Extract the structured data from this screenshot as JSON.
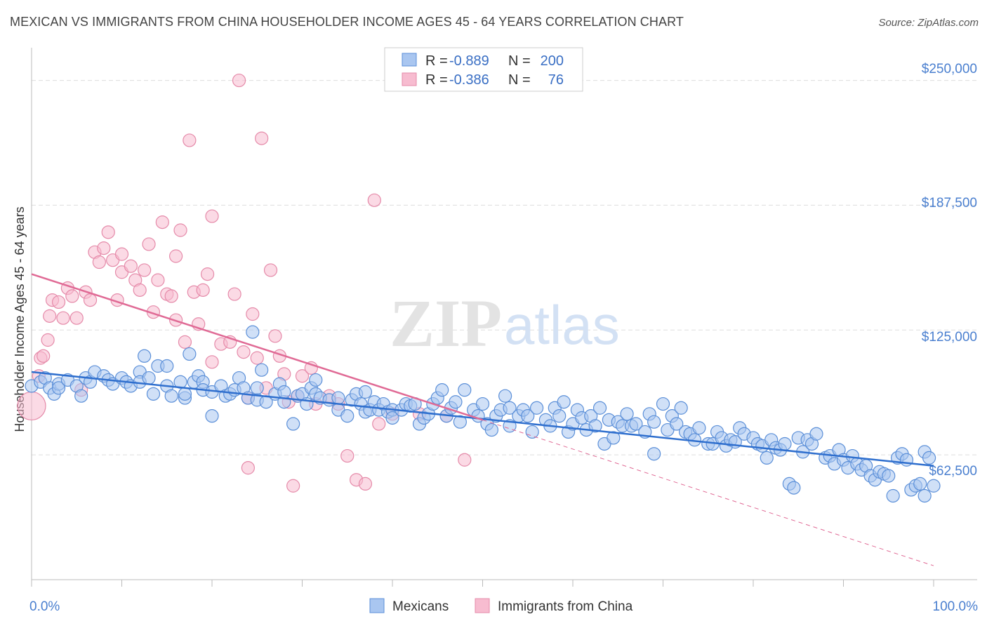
{
  "title": "MEXICAN VS IMMIGRANTS FROM CHINA HOUSEHOLDER INCOME AGES 45 - 64 YEARS CORRELATION CHART",
  "source": "Source: ZipAtlas.com",
  "watermark": {
    "zip": "ZIP",
    "atlas": "atlas"
  },
  "colors": {
    "blue_fill": "#a9c6f0",
    "blue_stroke": "#5b8fd8",
    "blue_line": "#2f6fce",
    "pink_fill": "#f7bcd0",
    "pink_stroke": "#e58aa9",
    "pink_line": "#e06a95",
    "grid": "#dddddd",
    "axis_text": "#4a7fcf"
  },
  "legend": {
    "rows": [
      {
        "r_label": "R =",
        "r_value": "-0.889",
        "n_label": "N =",
        "n_value": "200"
      },
      {
        "r_label": "R =",
        "r_value": "-0.386",
        "n_label": "N =",
        "n_value": "76"
      }
    ]
  },
  "chart_data": {
    "type": "scatter",
    "title": "MEXICAN VS IMMIGRANTS FROM CHINA HOUSEHOLDER INCOME AGES 45 - 64 YEARS CORRELATION CHART",
    "xlabel": "",
    "ylabel": "Householder Income Ages 45 - 64 years",
    "xlim": [
      0,
      100
    ],
    "ylim": [
      0,
      262500
    ],
    "x_tick_labels": [
      "0.0%",
      "100.0%"
    ],
    "y_ticks": [
      62500,
      125000,
      187500,
      250000
    ],
    "y_tick_labels": [
      "$62,500",
      "$125,000",
      "$187,500",
      "$250,000"
    ],
    "grid": true,
    "legend_position": "top-center",
    "series": [
      {
        "name": "Mexicans",
        "r": -0.889,
        "n": 200,
        "trend": {
          "x": [
            0,
            100
          ],
          "y": [
            104000,
            57000
          ]
        },
        "points": [
          [
            0,
            97000
          ],
          [
            1,
            99000
          ],
          [
            1.5,
            101000
          ],
          [
            2,
            96000
          ],
          [
            2.5,
            93000
          ],
          [
            3,
            98000
          ],
          [
            3,
            96000
          ],
          [
            4,
            100000
          ],
          [
            5,
            97000
          ],
          [
            5.5,
            92000
          ],
          [
            6,
            101000
          ],
          [
            6.5,
            99000
          ],
          [
            7,
            104000
          ],
          [
            8,
            102000
          ],
          [
            8.5,
            100000
          ],
          [
            9,
            98000
          ],
          [
            10,
            101000
          ],
          [
            10.5,
            99000
          ],
          [
            11,
            97000
          ],
          [
            12,
            104000
          ],
          [
            12,
            99000
          ],
          [
            12.5,
            112000
          ],
          [
            13,
            101000
          ],
          [
            13.5,
            93000
          ],
          [
            14,
            107000
          ],
          [
            15,
            107000
          ],
          [
            15,
            97000
          ],
          [
            15.5,
            92000
          ],
          [
            16.5,
            99000
          ],
          [
            17,
            91000
          ],
          [
            17,
            93000
          ],
          [
            17.5,
            113000
          ],
          [
            18,
            99000
          ],
          [
            18.5,
            102000
          ],
          [
            19,
            99000
          ],
          [
            19,
            95000
          ],
          [
            20,
            94000
          ],
          [
            20,
            82000
          ],
          [
            21,
            97000
          ],
          [
            21.5,
            92000
          ],
          [
            22,
            93000
          ],
          [
            22.5,
            95000
          ],
          [
            23,
            101000
          ],
          [
            23.5,
            96000
          ],
          [
            24,
            91000
          ],
          [
            24.5,
            124000
          ],
          [
            25,
            90000
          ],
          [
            25,
            96000
          ],
          [
            25.5,
            105000
          ],
          [
            26,
            89000
          ],
          [
            27,
            93000
          ],
          [
            27.5,
            98000
          ],
          [
            28,
            89000
          ],
          [
            28,
            94000
          ],
          [
            29,
            78000
          ],
          [
            29.5,
            92000
          ],
          [
            30,
            93000
          ],
          [
            30.5,
            88000
          ],
          [
            31,
            96000
          ],
          [
            31.5,
            100000
          ],
          [
            31.5,
            93000
          ],
          [
            32,
            91000
          ],
          [
            33,
            90000
          ],
          [
            34,
            85000
          ],
          [
            34,
            91000
          ],
          [
            35,
            82000
          ],
          [
            35.5,
            90000
          ],
          [
            36,
            93000
          ],
          [
            36.5,
            88000
          ],
          [
            37,
            84000
          ],
          [
            37,
            94000
          ],
          [
            37.5,
            85000
          ],
          [
            38,
            89000
          ],
          [
            38.5,
            85000
          ],
          [
            39,
            88000
          ],
          [
            39.5,
            84000
          ],
          [
            40,
            85000
          ],
          [
            40,
            81000
          ],
          [
            41,
            85000
          ],
          [
            41.5,
            88000
          ],
          [
            42,
            87000
          ],
          [
            42.5,
            88000
          ],
          [
            43,
            78000
          ],
          [
            43.5,
            81000
          ],
          [
            44,
            83000
          ],
          [
            44.5,
            88000
          ],
          [
            45,
            91000
          ],
          [
            45.5,
            95000
          ],
          [
            46,
            82000
          ],
          [
            46.5,
            86000
          ],
          [
            47,
            89000
          ],
          [
            47.5,
            79000
          ],
          [
            48,
            95000
          ],
          [
            49,
            85000
          ],
          [
            49.5,
            82000
          ],
          [
            50,
            88000
          ],
          [
            50.5,
            78000
          ],
          [
            51,
            75000
          ],
          [
            51.5,
            82000
          ],
          [
            52,
            85000
          ],
          [
            52.5,
            92000
          ],
          [
            53,
            86000
          ],
          [
            53,
            77000
          ],
          [
            54,
            82000
          ],
          [
            54.5,
            85000
          ],
          [
            55,
            82000
          ],
          [
            55.5,
            74000
          ],
          [
            56,
            86000
          ],
          [
            57,
            80000
          ],
          [
            57.5,
            77000
          ],
          [
            58,
            86000
          ],
          [
            58.5,
            82000
          ],
          [
            59,
            89000
          ],
          [
            59.5,
            74000
          ],
          [
            60,
            78000
          ],
          [
            60.5,
            85000
          ],
          [
            61,
            81000
          ],
          [
            61.5,
            75000
          ],
          [
            62,
            82000
          ],
          [
            62.5,
            77000
          ],
          [
            63,
            86000
          ],
          [
            63.5,
            68000
          ],
          [
            64,
            80000
          ],
          [
            64.5,
            71000
          ],
          [
            65,
            79000
          ],
          [
            65.5,
            77000
          ],
          [
            66,
            83000
          ],
          [
            66.5,
            77000
          ],
          [
            67,
            78000
          ],
          [
            68,
            74000
          ],
          [
            68.5,
            83000
          ],
          [
            69,
            79000
          ],
          [
            69,
            63000
          ],
          [
            70,
            88000
          ],
          [
            70.5,
            75000
          ],
          [
            71,
            82000
          ],
          [
            71.5,
            78000
          ],
          [
            72,
            86000
          ],
          [
            72.5,
            74000
          ],
          [
            73,
            73000
          ],
          [
            73.5,
            70000
          ],
          [
            74,
            76000
          ],
          [
            75,
            68000
          ],
          [
            75.5,
            68000
          ],
          [
            76,
            74000
          ],
          [
            76.5,
            71000
          ],
          [
            77,
            67000
          ],
          [
            77.5,
            70000
          ],
          [
            78,
            69000
          ],
          [
            78.5,
            76000
          ],
          [
            79,
            73000
          ],
          [
            80,
            71000
          ],
          [
            80.5,
            68000
          ],
          [
            81,
            67000
          ],
          [
            81.5,
            61000
          ],
          [
            82,
            70000
          ],
          [
            82.5,
            66000
          ],
          [
            83,
            65000
          ],
          [
            83.5,
            68000
          ],
          [
            84,
            48000
          ],
          [
            84.5,
            46000
          ],
          [
            85,
            71000
          ],
          [
            85.5,
            64000
          ],
          [
            86,
            70000
          ],
          [
            86.5,
            68000
          ],
          [
            87,
            73000
          ],
          [
            88,
            61000
          ],
          [
            88.5,
            62000
          ],
          [
            89,
            58000
          ],
          [
            89.5,
            65000
          ],
          [
            90,
            60000
          ],
          [
            90.5,
            56000
          ],
          [
            91,
            62000
          ],
          [
            91.5,
            58000
          ],
          [
            92,
            55000
          ],
          [
            92.5,
            57000
          ],
          [
            93,
            52000
          ],
          [
            93.5,
            50000
          ],
          [
            94,
            54000
          ],
          [
            94.5,
            53000
          ],
          [
            95,
            52000
          ],
          [
            95.5,
            42000
          ],
          [
            96,
            61000
          ],
          [
            96.5,
            63000
          ],
          [
            97,
            60000
          ],
          [
            97.5,
            45000
          ],
          [
            98,
            47000
          ],
          [
            98.5,
            48000
          ],
          [
            99,
            42000
          ],
          [
            99,
            64000
          ],
          [
            99.5,
            61000
          ],
          [
            100,
            47000
          ]
        ]
      },
      {
        "name": "Immigrants from China",
        "r": -0.386,
        "n": 76,
        "trend": {
          "x": [
            0,
            50
          ],
          "y": [
            153000,
            80000
          ],
          "extended": {
            "x": [
              50,
              100
            ],
            "y": [
              80000,
              7000
            ]
          }
        },
        "points": [
          [
            0,
            87000
          ],
          [
            0.8,
            102000
          ],
          [
            1,
            111000
          ],
          [
            1.3,
            112000
          ],
          [
            1.8,
            120000
          ],
          [
            2,
            132000
          ],
          [
            2.3,
            140000
          ],
          [
            3,
            139000
          ],
          [
            3.5,
            131000
          ],
          [
            4,
            146000
          ],
          [
            4.5,
            142000
          ],
          [
            5,
            131000
          ],
          [
            5.5,
            95000
          ],
          [
            6,
            144000
          ],
          [
            6.5,
            140000
          ],
          [
            7,
            164000
          ],
          [
            7.5,
            159000
          ],
          [
            8,
            166000
          ],
          [
            8.5,
            174000
          ],
          [
            9,
            160000
          ],
          [
            9.5,
            140000
          ],
          [
            10,
            154000
          ],
          [
            10,
            163000
          ],
          [
            11,
            157000
          ],
          [
            11.5,
            150000
          ],
          [
            12,
            145000
          ],
          [
            12.5,
            155000
          ],
          [
            13,
            168000
          ],
          [
            13.5,
            134000
          ],
          [
            14,
            150000
          ],
          [
            14.5,
            179000
          ],
          [
            15,
            143000
          ],
          [
            15.5,
            142000
          ],
          [
            16,
            130000
          ],
          [
            16,
            162000
          ],
          [
            16.5,
            175000
          ],
          [
            17,
            119000
          ],
          [
            17.5,
            220000
          ],
          [
            18,
            144000
          ],
          [
            18.5,
            128000
          ],
          [
            19,
            145000
          ],
          [
            19.5,
            153000
          ],
          [
            20,
            109000
          ],
          [
            20,
            182000
          ],
          [
            21,
            118000
          ],
          [
            22,
            119000
          ],
          [
            22.5,
            143000
          ],
          [
            23,
            250000
          ],
          [
            23.5,
            114000
          ],
          [
            24,
            91000
          ],
          [
            24.5,
            133000
          ],
          [
            25,
            111000
          ],
          [
            25.5,
            221000
          ],
          [
            26,
            96000
          ],
          [
            26.5,
            155000
          ],
          [
            27,
            122000
          ],
          [
            27.5,
            112000
          ],
          [
            28,
            103000
          ],
          [
            28.5,
            89000
          ],
          [
            29,
            47000
          ],
          [
            29.5,
            92000
          ],
          [
            30,
            102000
          ],
          [
            31,
            106000
          ],
          [
            31.5,
            88000
          ],
          [
            33,
            92000
          ],
          [
            34,
            88000
          ],
          [
            35,
            62000
          ],
          [
            36,
            50000
          ],
          [
            37,
            48000
          ],
          [
            38,
            190000
          ],
          [
            38.5,
            78000
          ],
          [
            40,
            83000
          ],
          [
            43,
            83000
          ],
          [
            46,
            82000
          ],
          [
            48,
            60000
          ],
          [
            24,
            56000
          ]
        ]
      }
    ]
  },
  "bottom_legend": [
    {
      "label": "Mexicans"
    },
    {
      "label": "Immigrants from China"
    }
  ]
}
